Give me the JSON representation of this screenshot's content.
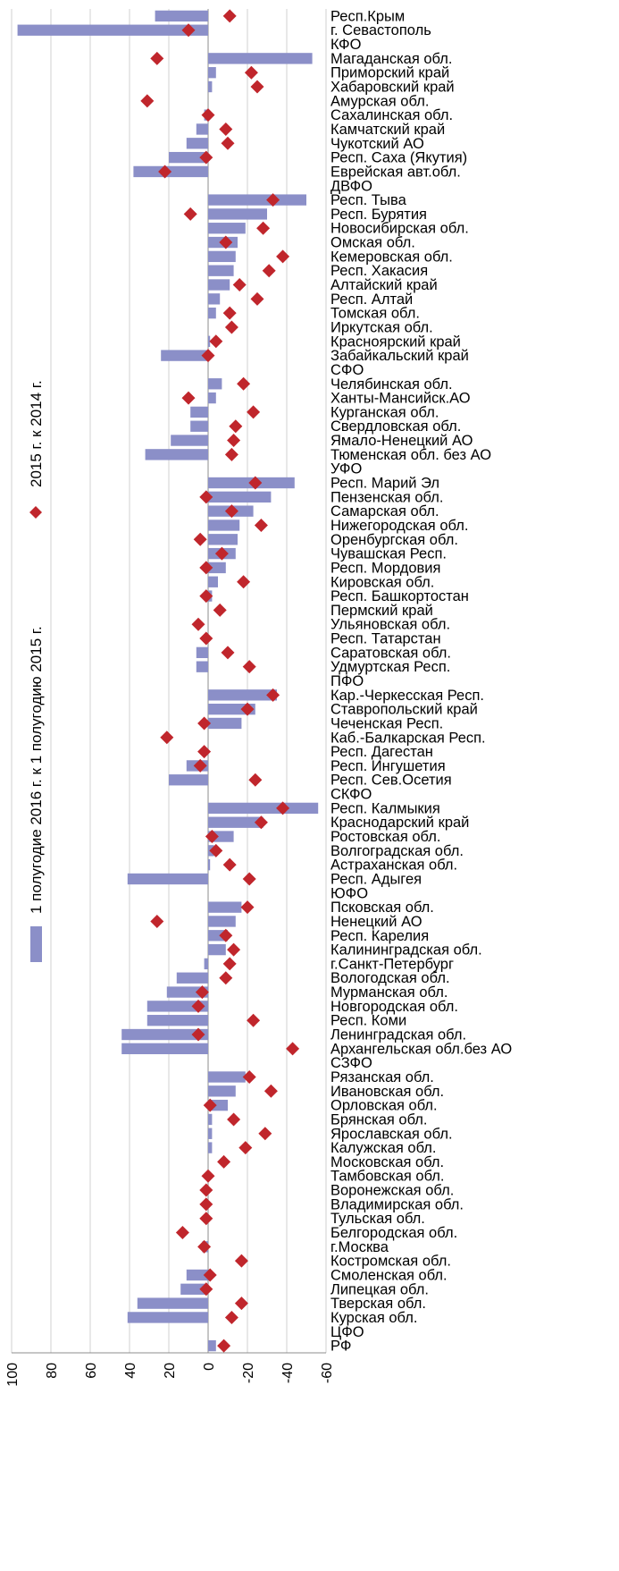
{
  "chart_data": {
    "type": "bar",
    "orientation": "horizontal",
    "x_axis": "reversed",
    "xlim": [
      -60,
      100
    ],
    "x_ticks": [
      100,
      80,
      60,
      40,
      20,
      0,
      -20,
      -40,
      -60
    ],
    "grid": true,
    "legend_position": "left",
    "categories": [
      "Респ.Крым",
      "г. Севастополь",
      "КФО",
      "Магаданская обл.",
      "Приморский край",
      "Хабаровский край",
      "Амурская обл.",
      "Сахалинская обл.",
      "Камчатский край",
      "Чукотский АО",
      "Респ. Саха (Якутия)",
      "Еврейская авт.обл.",
      "ДВФО",
      "Респ. Тыва",
      "Респ. Бурятия",
      "Новосибирская обл.",
      "Омская обл.",
      "Кемеровская обл.",
      "Респ. Хакасия",
      "Алтайский край",
      "Респ. Алтай",
      "Томская обл.",
      "Иркутская обл.",
      "Красноярский край",
      "Забайкальский край",
      "СФО",
      "Челябинская обл.",
      "Ханты-Мансийск.АО",
      "Курганская обл.",
      "Свердловская обл.",
      "Ямало-Ненецкий АО",
      "Тюменская обл. без АО",
      "УФО",
      "Респ. Марий Эл",
      "Пензенская обл.",
      "Самарская обл.",
      "Нижегородская обл.",
      "Оренбургская обл.",
      "Чувашская Респ.",
      "Респ. Мордовия",
      "Кировская обл.",
      "Респ. Башкортостан",
      "Пермский край",
      "Ульяновская обл.",
      "Респ. Татарстан",
      "Саратовская обл.",
      "Удмуртская Респ.",
      "ПФО",
      "Кар.-Черкесская Респ.",
      "Ставропольский край",
      "Чеченская Респ.",
      "Каб.-Балкарская Респ.",
      "Респ. Дагестан",
      "Респ. Ингушетия",
      "Респ. Сев.Осетия",
      "СКФО",
      "Респ. Калмыкия",
      "Краснодарский край",
      "Ростовская обл.",
      "Волгоградская обл.",
      "Астраханская обл.",
      "Респ. Адыгея",
      "ЮФО",
      "Псковская обл.",
      "Ненецкий АО",
      "Респ. Карелия",
      "Калининградская обл.",
      "г.Санкт-Петербург",
      "Вологодская обл.",
      "Мурманская обл.",
      "Новгородская обл.",
      "Респ. Коми",
      "Ленинградская обл.",
      "Архангельская обл.без АО",
      "СЗФО",
      "Рязанская обл.",
      "Ивановская обл.",
      "Орловская обл.",
      "Брянская обл.",
      "Ярославская обл.",
      "Калужская обл.",
      "Московская обл.",
      "Тамбовская обл.",
      "Воронежская обл.",
      "Владимирская обл.",
      "Тульская обл.",
      "Белгородская обл.",
      "г.Москва",
      "Костромская обл.",
      "Смоленская обл.",
      "Липецкая обл.",
      "Тверская обл.",
      "Курская обл.",
      "ЦФО",
      "РФ"
    ],
    "series": [
      {
        "name": "1 полугодие 2016 г. к 1 полугодию 2015 г.",
        "color": "#8b8fc8",
        "values": [
          27,
          97,
          0,
          -53,
          -4,
          -2,
          0,
          2,
          6,
          11,
          20,
          38,
          0,
          -50,
          -30,
          -19,
          -15,
          -14,
          -13,
          -11,
          -6,
          -4,
          0,
          -1,
          24,
          0,
          -7,
          -4,
          9,
          9,
          19,
          32,
          0,
          -44,
          -32,
          -23,
          -16,
          -15,
          -14,
          -9,
          -5,
          -2,
          0,
          0,
          0,
          6,
          6,
          0,
          -35,
          -24,
          -17,
          0,
          0,
          11,
          20,
          0,
          -56,
          -28,
          -13,
          -3,
          -1,
          41,
          0,
          -17,
          -14,
          -10,
          -9,
          2,
          16,
          21,
          31,
          31,
          44,
          44,
          0,
          -19,
          -14,
          -10,
          -2,
          -2,
          -2,
          0,
          0,
          0,
          0,
          0,
          0,
          3,
          0,
          11,
          14,
          36,
          41,
          0,
          -4
        ]
      },
      {
        "name": "2015 г. к 2014 г.",
        "color": "#c0262c",
        "values": [
          -11,
          10,
          null,
          26,
          -22,
          -25,
          31,
          0,
          -9,
          -10,
          1,
          22,
          null,
          -33,
          9,
          -28,
          -9,
          -38,
          -31,
          -16,
          -25,
          -11,
          -12,
          -4,
          0,
          null,
          -18,
          10,
          -23,
          -14,
          -13,
          -12,
          null,
          -24,
          1,
          -12,
          -27,
          4,
          -7,
          1,
          -18,
          1,
          -6,
          5,
          1,
          -10,
          -21,
          null,
          -33,
          -20,
          2,
          21,
          2,
          4,
          -24,
          null,
          -38,
          -27,
          -2,
          -4,
          -11,
          -21,
          null,
          -20,
          26,
          -9,
          -13,
          -11,
          -9,
          3,
          5,
          -23,
          5,
          -43,
          null,
          -21,
          -32,
          -1,
          -13,
          -29,
          -19,
          -8,
          0,
          1,
          1,
          1,
          13,
          2,
          -17,
          -1,
          1,
          -17,
          -12,
          null,
          -8
        ]
      }
    ]
  }
}
